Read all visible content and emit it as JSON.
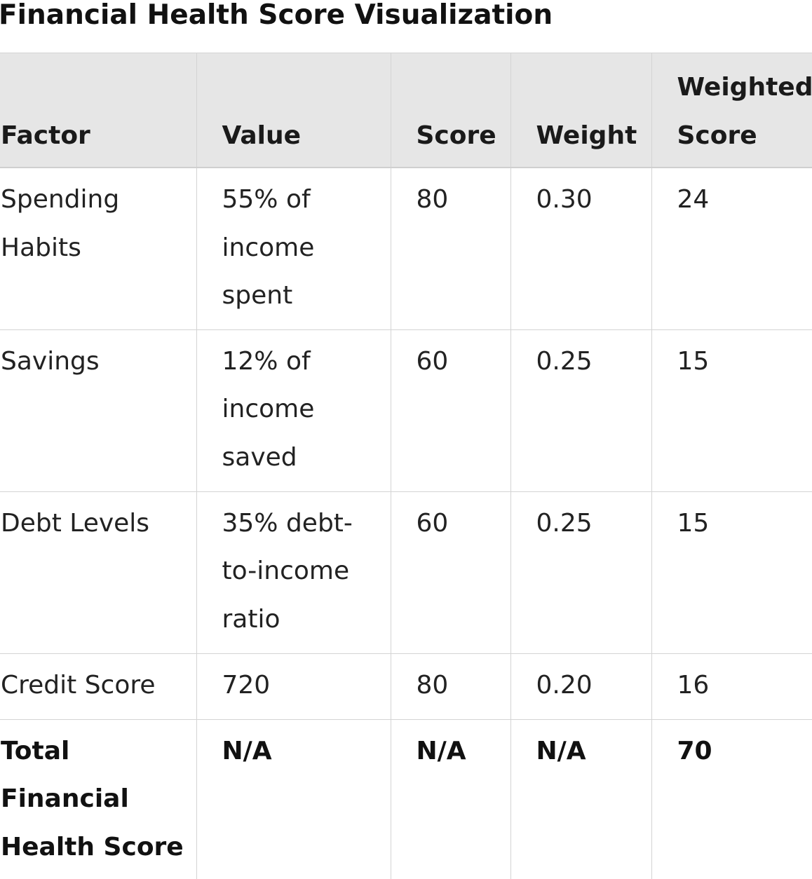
{
  "title": "Financial Health Score Visualization",
  "table": {
    "headers": {
      "factor": "Factor",
      "value": "Value",
      "score": "Score",
      "weight": "Weight",
      "weighted_score": "Weighted Score"
    },
    "rows": [
      {
        "factor": "Spending Habits",
        "value": "55% of income spent",
        "score": "80",
        "weight": "0.30",
        "weighted_score": "24"
      },
      {
        "factor": "Savings",
        "value": "12% of income saved",
        "score": "60",
        "weight": "0.25",
        "weighted_score": "15"
      },
      {
        "factor": "Debt Levels",
        "value": "35% debt-to-income ratio",
        "score": "60",
        "weight": "0.25",
        "weighted_score": "15"
      },
      {
        "factor": "Credit Score",
        "value": "720",
        "score": "80",
        "weight": "0.20",
        "weighted_score": "16"
      }
    ],
    "total": {
      "factor": "Total Financial Health Score",
      "value": "N/A",
      "score": "N/A",
      "weight": "N/A",
      "weighted_score": "70"
    }
  }
}
